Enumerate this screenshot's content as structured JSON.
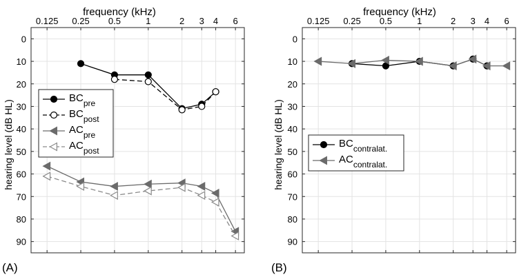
{
  "panels": [
    {
      "label": "(A)",
      "top_title": "frequency (kHz)",
      "ylabel": "hearing level (dB HL)"
    },
    {
      "label": "(B)",
      "top_title": "frequency (kHz)",
      "ylabel": "hearing level (dB HL)"
    }
  ],
  "chart_data": [
    {
      "type": "line",
      "title": "frequency (kHz)",
      "xlabel": "frequency (kHz)",
      "ylabel": "hearing level (dB HL)",
      "x_scale": "log",
      "x_ticks": [
        0.125,
        0.25,
        0.5,
        1,
        2,
        3,
        4,
        6
      ],
      "x_tick_labels": [
        "0.125",
        "0.25",
        "0.5",
        "1",
        "2",
        "3",
        "4",
        "6"
      ],
      "xlim": [
        0.09,
        7.2
      ],
      "ylim": [
        95,
        -5
      ],
      "y_ticks": [
        0,
        10,
        20,
        30,
        40,
        50,
        60,
        70,
        80,
        90
      ],
      "y_tick_labels": [
        "0",
        "10",
        "20",
        "30",
        "40",
        "50",
        "60",
        "70",
        "80",
        "90"
      ],
      "grid": true,
      "legend_position": "middle-left",
      "series": [
        {
          "name": "BC",
          "sub": "pre",
          "color": "#000000",
          "marker": "filled-circle",
          "dash": "solid",
          "x": [
            0.25,
            0.5,
            1,
            2,
            3,
            4
          ],
          "values": [
            11,
            16,
            16,
            31,
            29,
            23.5
          ]
        },
        {
          "name": "BC",
          "sub": "post",
          "color": "#000000",
          "marker": "open-circle",
          "dash": "dashed",
          "x": [
            0.5,
            1,
            2,
            3,
            4
          ],
          "values": [
            18,
            19,
            31.5,
            30,
            23.5
          ]
        },
        {
          "name": "AC",
          "sub": "pre",
          "color": "#6b6b6b",
          "marker": "filled-triangle-left",
          "dash": "solid",
          "x": [
            0.125,
            0.25,
            0.5,
            1,
            2,
            3,
            4,
            6
          ],
          "values": [
            56.5,
            63.5,
            65.5,
            64.5,
            64,
            65.5,
            68.5,
            85.5
          ]
        },
        {
          "name": "AC",
          "sub": "post",
          "color": "#8a8a8a",
          "marker": "open-triangle-left",
          "dash": "dashed",
          "x": [
            0.125,
            0.25,
            0.5,
            1,
            2,
            3,
            4,
            6
          ],
          "values": [
            61,
            65.5,
            69.5,
            67.5,
            66,
            69.5,
            72.5,
            87.5
          ]
        }
      ]
    },
    {
      "type": "line",
      "title": "frequency (kHz)",
      "xlabel": "frequency (kHz)",
      "ylabel": "hearing level (dB HL)",
      "x_scale": "log",
      "x_ticks": [
        0.125,
        0.25,
        0.5,
        1,
        2,
        3,
        4,
        6
      ],
      "x_tick_labels": [
        "0.125",
        "0.25",
        "0.5",
        "1",
        "2",
        "3",
        "4",
        "6"
      ],
      "xlim": [
        0.09,
        7.2
      ],
      "ylim": [
        95,
        -5
      ],
      "y_ticks": [
        0,
        10,
        20,
        30,
        40,
        50,
        60,
        70,
        80,
        90
      ],
      "y_tick_labels": [
        "0",
        "10",
        "20",
        "30",
        "40",
        "50",
        "60",
        "70",
        "80",
        "90"
      ],
      "grid": true,
      "legend_position": "middle-left",
      "series": [
        {
          "name": "BC",
          "sub": "contralat.",
          "color": "#000000",
          "marker": "filled-circle",
          "dash": "solid",
          "x": [
            0.25,
            0.5,
            1,
            2,
            3,
            4
          ],
          "values": [
            11,
            12,
            10,
            12,
            9,
            12
          ]
        },
        {
          "name": "AC",
          "sub": "contralat.",
          "color": "#6b6b6b",
          "marker": "filled-triangle-left",
          "dash": "solid",
          "x": [
            0.125,
            0.25,
            0.5,
            1,
            2,
            3,
            4,
            6
          ],
          "values": [
            10,
            11,
            9.5,
            10,
            12,
            9,
            12,
            12
          ]
        }
      ]
    }
  ]
}
